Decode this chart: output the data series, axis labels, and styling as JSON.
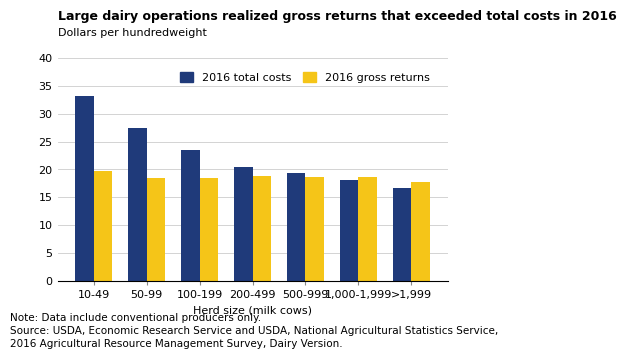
{
  "title": "Large dairy operations realized gross returns that exceeded total costs in 2016",
  "ylabel": "Dollars per hundredweight",
  "xlabel": "Herd size (milk cows)",
  "categories": [
    "10-49",
    "50-99",
    "100-199",
    "200-499",
    "500-999",
    "1,000-1,999",
    ">1,999"
  ],
  "total_costs": [
    33.2,
    27.5,
    23.5,
    20.5,
    19.3,
    18.2,
    16.7
  ],
  "gross_returns": [
    19.7,
    18.5,
    18.5,
    18.9,
    18.7,
    18.6,
    17.7
  ],
  "color_costs": "#1F3A7A",
  "color_returns": "#F5C518",
  "ylim": [
    0,
    40
  ],
  "yticks": [
    0,
    5,
    10,
    15,
    20,
    25,
    30,
    35,
    40
  ],
  "legend_labels": [
    "2016 total costs",
    "2016 gross returns"
  ],
  "note_line1": "Note: Data include conventional producers only.",
  "note_line2": "Source: USDA, Economic Research Service and USDA, National Agricultural Statistics Service,",
  "note_line3": "2016 Agricultural Resource Management Survey, Dairy Version.",
  "title_fontsize": 9.0,
  "axis_label_fontsize": 8.0,
  "tick_fontsize": 8.0,
  "legend_fontsize": 8.0,
  "note_fontsize": 7.5,
  "bar_width": 0.35
}
